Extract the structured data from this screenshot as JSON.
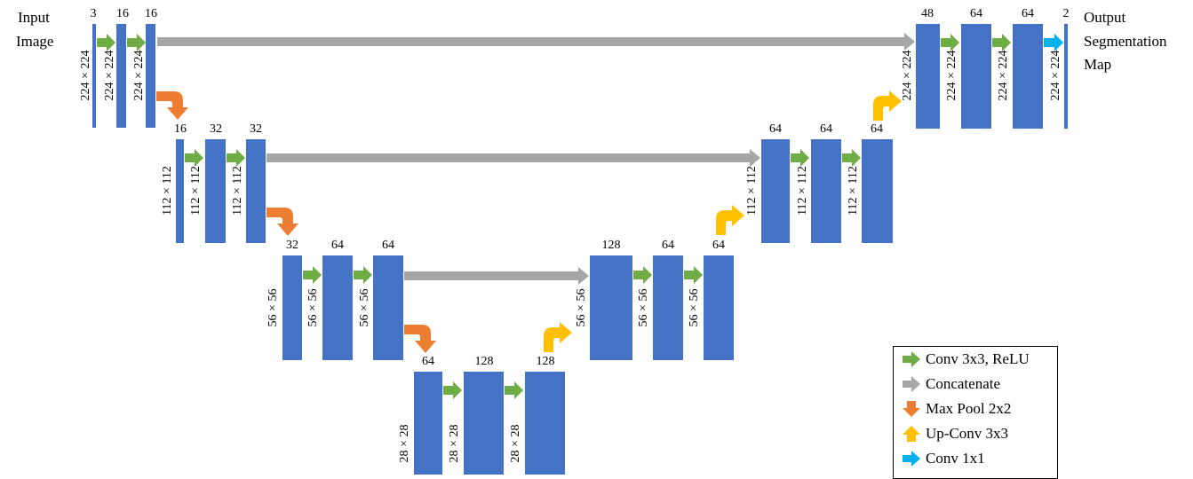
{
  "input_label": [
    "Input",
    "Image"
  ],
  "output_label": [
    "Output",
    "Segmentation",
    "Map"
  ],
  "blocks": [
    {
      "channels": "3",
      "size": "224 × 224"
    },
    {
      "channels": "16",
      "size": "224 × 224"
    },
    {
      "channels": "16",
      "size": "224 × 224"
    },
    {
      "channels": "16",
      "size": "112 × 112"
    },
    {
      "channels": "32",
      "size": "112 × 112"
    },
    {
      "channels": "32",
      "size": "112 × 112"
    },
    {
      "channels": "32",
      "size": "56 × 56"
    },
    {
      "channels": "64",
      "size": "56 × 56"
    },
    {
      "channels": "64",
      "size": "56 × 56"
    },
    {
      "channels": "64",
      "size": "28 × 28"
    },
    {
      "channels": "128",
      "size": "28 × 28"
    },
    {
      "channels": "128",
      "size": "28 × 28"
    },
    {
      "channels": "128",
      "size": "56 × 56"
    },
    {
      "channels": "64",
      "size": "56 × 56"
    },
    {
      "channels": "64",
      "size": "56 × 56"
    },
    {
      "channels": "64",
      "size": "112 × 112"
    },
    {
      "channels": "64",
      "size": "112 × 112"
    },
    {
      "channels": "64",
      "size": "112 × 112"
    },
    {
      "channels": "48",
      "size": "224 × 224"
    },
    {
      "channels": "64",
      "size": "224 × 224"
    },
    {
      "channels": "64",
      "size": "224 × 224"
    },
    {
      "channels": "2",
      "size": "224 × 224"
    }
  ],
  "legend": [
    {
      "label": "Conv 3x3, ReLU",
      "kind": "conv"
    },
    {
      "label": "Concatenate",
      "kind": "concat"
    },
    {
      "label": "Max Pool 2x2",
      "kind": "pool"
    },
    {
      "label": "Up-Conv 3x3",
      "kind": "upconv"
    },
    {
      "label": "Conv 1x1",
      "kind": "conv1"
    }
  ],
  "colors": {
    "block": "#4472c4",
    "conv": "#70ad47",
    "concat": "#a6a6a6",
    "pool": "#ed7d31",
    "upconv": "#ffc000",
    "conv1": "#00b0f0"
  }
}
